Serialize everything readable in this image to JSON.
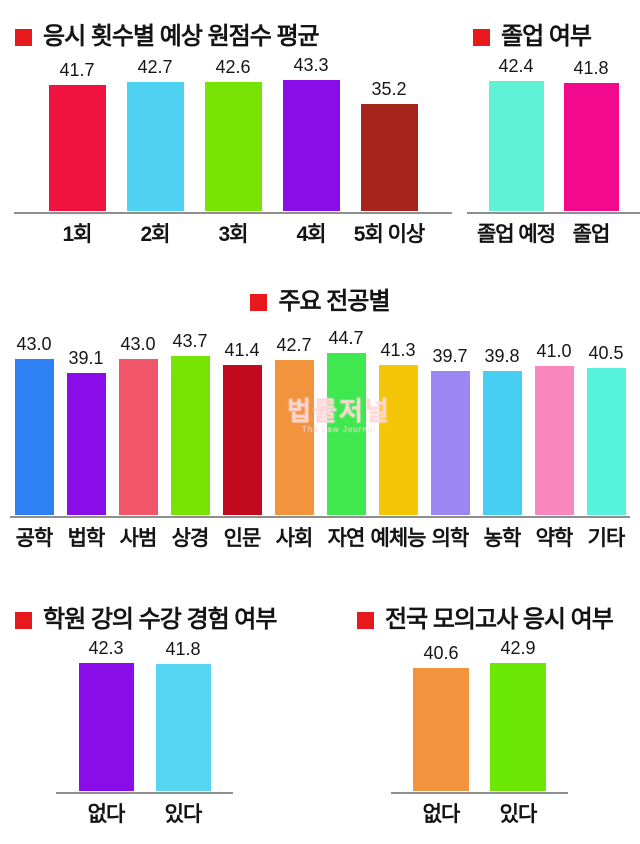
{
  "page": {
    "background": "#ffffff",
    "title_bullet_color": "#e8191c",
    "axis_color": "#8f8f8f"
  },
  "watermark": {
    "line1": "법률저널",
    "line2": "The Law Journal"
  },
  "chart_data": [
    {
      "id": "score-by-attempt-count",
      "type": "bar",
      "title": "응시 횟수별 예상 원점수 평균",
      "categories": [
        "1회",
        "2회",
        "3회",
        "4회",
        "5회 이상"
      ],
      "values": [
        41.7,
        42.7,
        42.6,
        43.3,
        35.2
      ],
      "colors": [
        "#f0123f",
        "#4fd1f2",
        "#78e405",
        "#8a0ce8",
        "#a5241b"
      ],
      "value_labels": true,
      "grid": false,
      "legend": false,
      "xlabel": "",
      "ylabel": ""
    },
    {
      "id": "graduation-status",
      "type": "bar",
      "title": "졸업 여부",
      "categories": [
        "졸업 예정",
        "졸업"
      ],
      "values": [
        42.4,
        41.8
      ],
      "colors": [
        "#5ff2d7",
        "#f2098e"
      ],
      "value_labels": true,
      "grid": false,
      "legend": false,
      "xlabel": "",
      "ylabel": ""
    },
    {
      "id": "by-major",
      "type": "bar",
      "title": "주요 전공별",
      "categories": [
        "공학",
        "법학",
        "사범",
        "상경",
        "인문",
        "사회",
        "자연",
        "예체능",
        "의학",
        "농학",
        "약학",
        "기타"
      ],
      "values": [
        43.0,
        39.1,
        43.0,
        43.7,
        41.4,
        42.7,
        44.7,
        41.3,
        39.7,
        39.8,
        41.0,
        40.5
      ],
      "colors": [
        "#2f80f2",
        "#8a0ce8",
        "#f2566b",
        "#78e405",
        "#c20a1e",
        "#f2933d",
        "#3fe84f",
        "#f5c608",
        "#9c86f2",
        "#46cff2",
        "#f987be",
        "#57f2dc"
      ],
      "value_labels": true,
      "grid": false,
      "legend": false,
      "xlabel": "",
      "ylabel": ""
    },
    {
      "id": "academy-lecture-experience",
      "type": "bar",
      "title": "학원 강의 수강 경험 여부",
      "categories": [
        "없다",
        "있다"
      ],
      "values": [
        42.3,
        41.8
      ],
      "colors": [
        "#8a0ce8",
        "#57d6f2"
      ],
      "value_labels": true,
      "grid": false,
      "legend": false,
      "xlabel": "",
      "ylabel": ""
    },
    {
      "id": "national-mock-exam-taken",
      "type": "bar",
      "title": "전국 모의고사 응시 여부",
      "categories": [
        "없다",
        "있다"
      ],
      "values": [
        40.6,
        42.9
      ],
      "colors": [
        "#f2933d",
        "#6be805"
      ],
      "value_labels": true,
      "grid": false,
      "legend": false,
      "xlabel": "",
      "ylabel": ""
    }
  ]
}
